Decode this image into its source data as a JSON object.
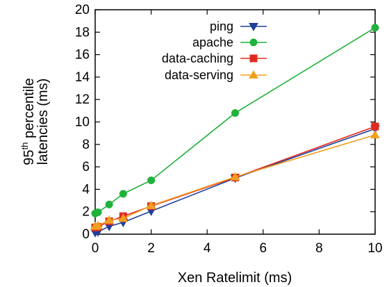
{
  "chart_data": {
    "type": "line",
    "title": "",
    "xlabel": "Xen Ratelimit (ms)",
    "ylabel": {
      "line1_prefix": "95",
      "line1_sup": "th",
      "line1_suffix": " percentile",
      "line2": "latencies (ms)"
    },
    "xlim": [
      0,
      10
    ],
    "ylim": [
      0,
      20
    ],
    "xticks": [
      0,
      2,
      4,
      6,
      8,
      10
    ],
    "yticks": [
      0,
      2,
      4,
      6,
      8,
      10,
      12,
      14,
      16,
      18,
      20
    ],
    "grid": false,
    "legend_position": "top-right",
    "series": [
      {
        "name": "ping",
        "color": "#1f3f99",
        "marker": "triangle-down",
        "points": [
          [
            0,
            0.15
          ],
          [
            0.1,
            0.2
          ],
          [
            0.5,
            0.7
          ],
          [
            1,
            1.05
          ],
          [
            2,
            2.05
          ],
          [
            5,
            5.0
          ],
          [
            10,
            9.4
          ]
        ]
      },
      {
        "name": "apache",
        "color": "#1fb33a",
        "marker": "circle",
        "points": [
          [
            0,
            1.85
          ],
          [
            0.1,
            1.95
          ],
          [
            0.5,
            2.65
          ],
          [
            1,
            3.6
          ],
          [
            2,
            4.8
          ],
          [
            5,
            10.8
          ],
          [
            10,
            18.4
          ]
        ]
      },
      {
        "name": "data-caching",
        "color": "#e02a1f",
        "marker": "square",
        "points": [
          [
            0,
            0.6
          ],
          [
            0.1,
            0.65
          ],
          [
            0.5,
            1.15
          ],
          [
            1,
            1.6
          ],
          [
            2,
            2.5
          ],
          [
            5,
            5.05
          ],
          [
            10,
            9.6
          ]
        ]
      },
      {
        "name": "data-serving",
        "color": "#f0a020",
        "marker": "triangle-up",
        "points": [
          [
            0,
            0.7
          ],
          [
            0.1,
            0.75
          ],
          [
            0.5,
            1.25
          ],
          [
            1,
            1.4
          ],
          [
            2,
            2.55
          ],
          [
            5,
            5.1
          ],
          [
            10,
            8.85
          ]
        ]
      }
    ]
  }
}
